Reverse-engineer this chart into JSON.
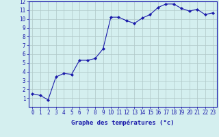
{
  "x": [
    0,
    1,
    2,
    3,
    4,
    5,
    6,
    7,
    8,
    9,
    10,
    11,
    12,
    13,
    14,
    15,
    16,
    17,
    18,
    19,
    20,
    21,
    22,
    23
  ],
  "y": [
    1.5,
    1.3,
    0.8,
    3.4,
    3.8,
    3.7,
    5.3,
    5.3,
    5.5,
    6.6,
    10.2,
    10.2,
    9.8,
    9.5,
    10.1,
    10.5,
    11.3,
    11.7,
    11.7,
    11.2,
    10.9,
    11.1,
    10.5,
    10.7
  ],
  "line_color": "#1a1aaa",
  "marker": "D",
  "marker_size": 2.0,
  "xlabel": "Graphe des températures (°c)",
  "xlim": [
    -0.5,
    23.5
  ],
  "ylim": [
    0,
    12
  ],
  "yticks": [
    1,
    2,
    3,
    4,
    5,
    6,
    7,
    8,
    9,
    10,
    11,
    12
  ],
  "xticks": [
    0,
    1,
    2,
    3,
    4,
    5,
    6,
    7,
    8,
    9,
    10,
    11,
    12,
    13,
    14,
    15,
    16,
    17,
    18,
    19,
    20,
    21,
    22,
    23
  ],
  "bg_color": "#d4efef",
  "grid_color": "#b0c8c8",
  "axis_color": "#1a1aaa",
  "label_color": "#1a1aaa",
  "xlabel_fontsize": 6.5,
  "tick_fontsize": 5.5,
  "linewidth": 0.8
}
